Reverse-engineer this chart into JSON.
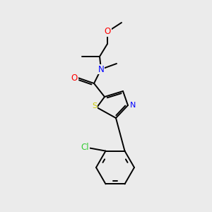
{
  "background_color": "#ebebeb",
  "bond_color": "#000000",
  "atom_colors": {
    "O": "#ff0000",
    "N": "#0000ff",
    "S": "#cccc00",
    "Cl": "#33cc33",
    "C": "#000000"
  },
  "fig_width": 3.0,
  "fig_height": 3.0,
  "dpi": 100,
  "bond_lw": 1.4,
  "font_size": 7.5
}
